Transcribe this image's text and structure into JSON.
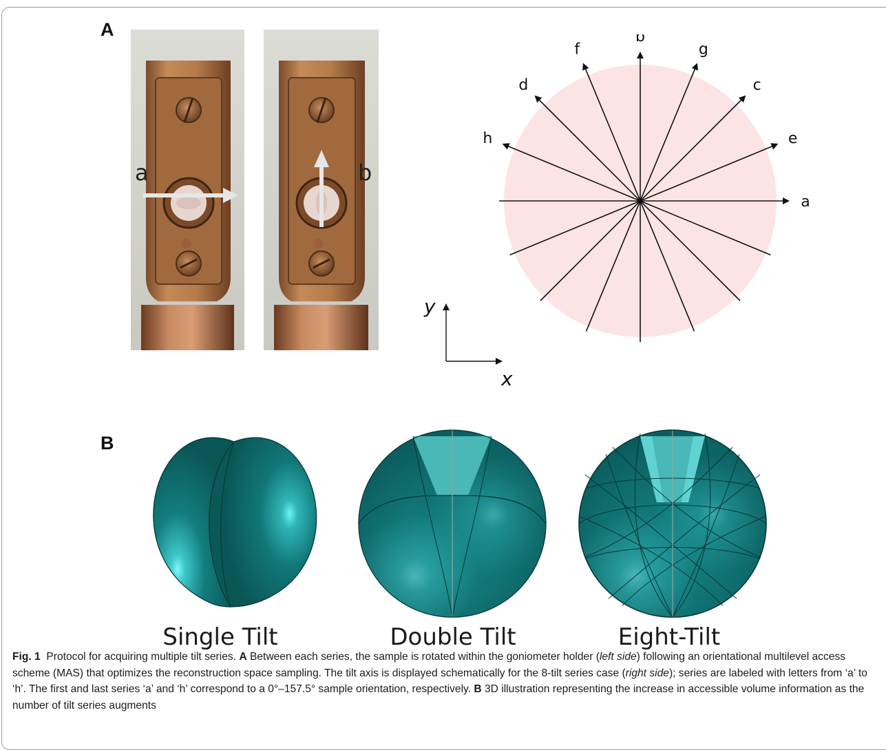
{
  "panel_a": {
    "letter": "A",
    "photo_left_label": "a",
    "photo_right_label": "b",
    "series_labels": [
      "a",
      "b",
      "c",
      "d",
      "e",
      "f",
      "g",
      "h"
    ],
    "axis_y": "y",
    "axis_x": "x",
    "colors": {
      "disk": "#fde4e4",
      "holder_copper": "#b87a48",
      "background_photo": "#d5d5d0"
    }
  },
  "panel_b": {
    "letter": "B",
    "spheres": [
      {
        "label": "Single Tilt"
      },
      {
        "label": "Double Tilt"
      },
      {
        "label": "Eight-Tilt"
      }
    ],
    "colors": {
      "sphere": "#0e6566",
      "sphere_light": "#57e8ec",
      "wedge": "#49b8b6"
    }
  },
  "caption": {
    "fig_label": "Fig. 1",
    "t1": "Protocol for acquiring multiple tilt series.",
    "a_letter": "A",
    "t2": "Between each series, the sample is rotated within the goniometer holder (",
    "left_side": "left side",
    "t3": ") following an orientational multilevel access scheme (MAS) that optimizes the reconstruction space sampling. The tilt axis is displayed schematically for the 8-tilt series case (",
    "right_side": "right side",
    "t4": "); series are labeled with letters from ‘a’ to ‘h’. The first and last series ‘a’ and ‘h’ correspond to a 0°–157.5° sample orientation, respectively.",
    "b_letter": "B",
    "t5": "3D illustration representing the increase in accessible volume information as the number of tilt series augments"
  }
}
